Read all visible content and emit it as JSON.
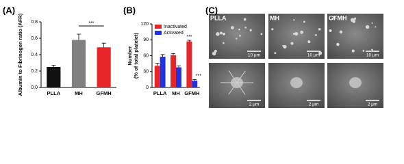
{
  "chart_data": [
    {
      "type": "bar",
      "panel": "(A)",
      "y_label": "Albumin to Fibrinogen ratio (AFR)",
      "categories": [
        "PLLA",
        "MH",
        "GFMH"
      ],
      "values": [
        0.25,
        0.58,
        0.49
      ],
      "errors": [
        0.02,
        0.07,
        0.05
      ],
      "colors": [
        "#111111",
        "#808080",
        "#e8262a"
      ],
      "ylim": [
        0,
        0.8
      ],
      "yticks": [
        {
          "value": 0,
          "label": "0.0"
        },
        0.2,
        0.4,
        0.6,
        0.8
      ],
      "annotation": "***"
    },
    {
      "type": "grouped-bar",
      "panel": "(B)",
      "y_label": "Number",
      "y_sublabel": "(% of total platelet)",
      "categories": [
        "PLLA",
        "MH",
        "GFMH"
      ],
      "series": [
        {
          "name": "Inactivated",
          "color": "#e8262a",
          "values": [
            41,
            61,
            87
          ],
          "errors": [
            5,
            3,
            2
          ]
        },
        {
          "name": "Activated",
          "color": "#2233dd",
          "values": [
            58,
            38,
            13
          ],
          "errors": [
            4,
            3,
            2
          ]
        }
      ],
      "ylim": [
        0,
        120
      ],
      "yticks": [
        0,
        30,
        60,
        90,
        120
      ],
      "annotations": [
        "***",
        "***"
      ]
    }
  ],
  "images": {
    "panel": "(C)",
    "labels": [
      "PLLA",
      "MH",
      "GFMH"
    ],
    "scale_bars": [
      "10 μm",
      "10 μm",
      "10 μm",
      "2 μm",
      "2 μm",
      "2 μm"
    ]
  }
}
